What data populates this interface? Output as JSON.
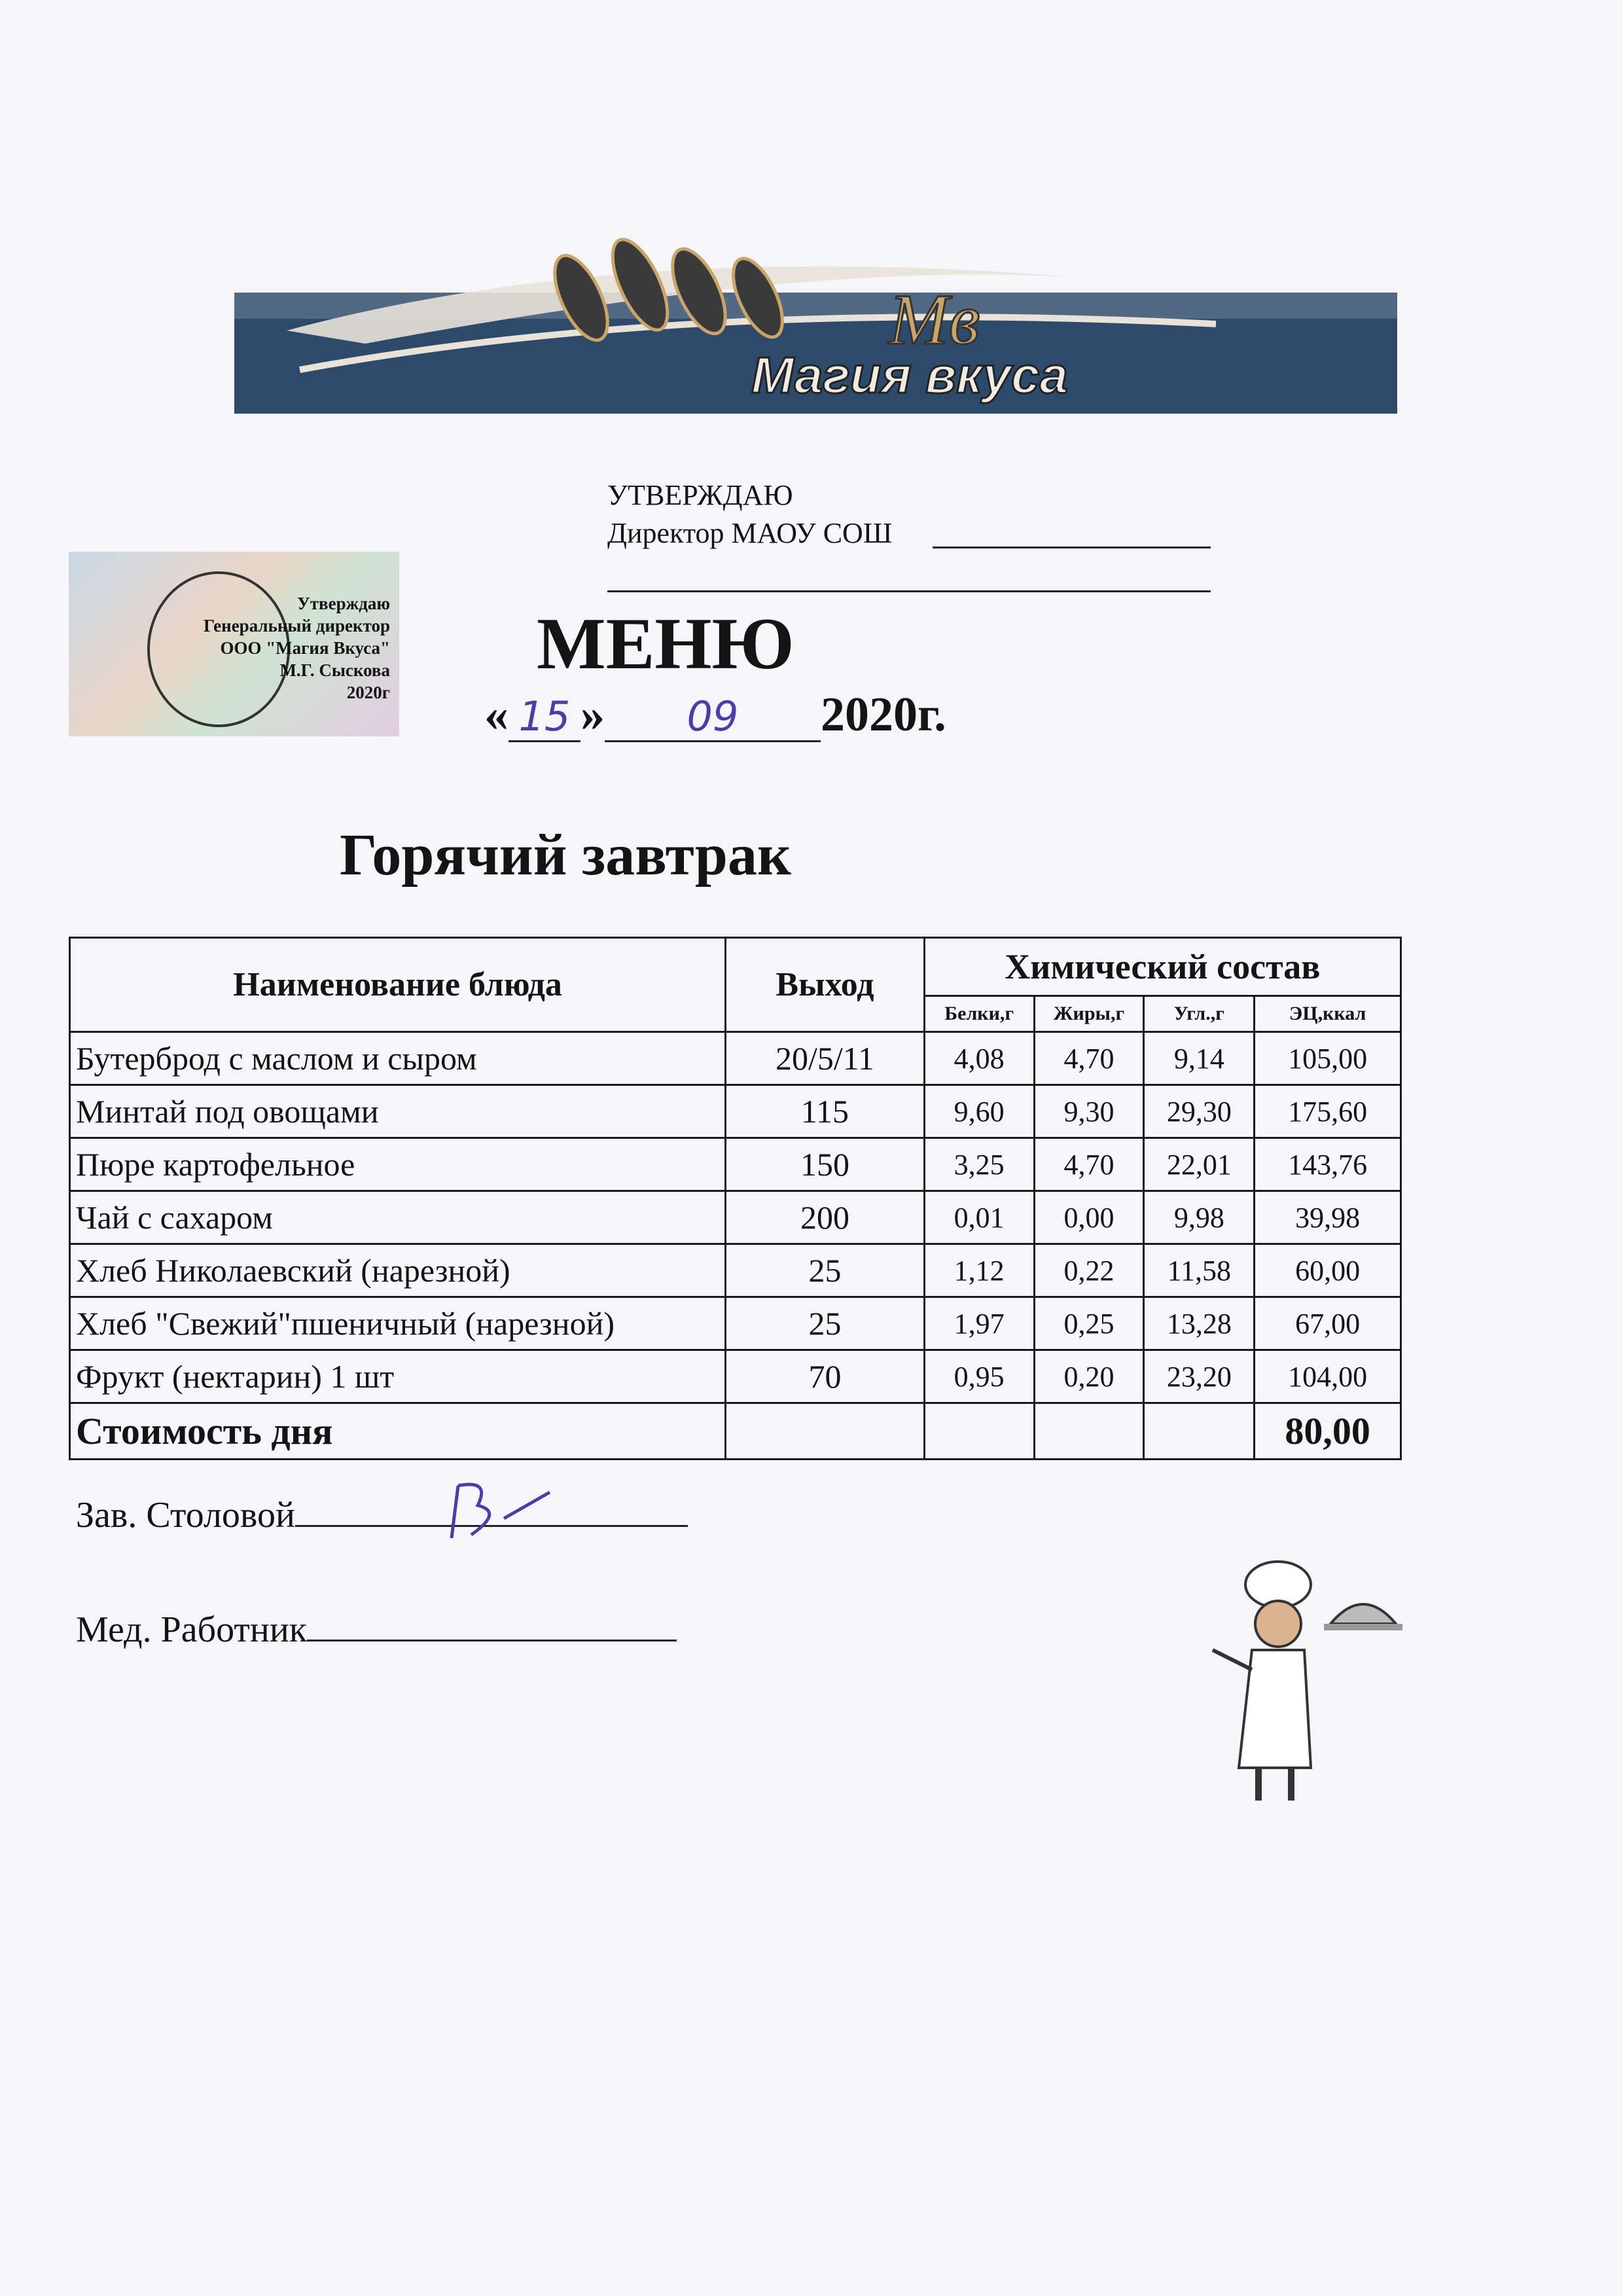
{
  "logo": {
    "brand_text": "Магия вкуса",
    "colors": {
      "band": "#2d4a6b",
      "gold": "#c9a46b"
    }
  },
  "approval": {
    "line1": "УТВЕРЖДАЮ",
    "line2": "Директор МАОУ СОШ"
  },
  "stamp": {
    "lines": [
      "Утверждаю",
      "Генеральный директор",
      "ООО \"Магия Вкуса\"",
      "М.Г. Сыскова",
      "2020г"
    ]
  },
  "title": "МЕНЮ",
  "date": {
    "open_quote": "«",
    "day": "15",
    "close_quote": "»",
    "month": "09",
    "year": "2020г."
  },
  "meal": "Горячий завтрак",
  "table": {
    "headers": {
      "name": "Наименование блюда",
      "output": "Выход",
      "chem": "Химический состав",
      "protein": "Белки,г",
      "fat": "Жиры,г",
      "carbs": "Угл.,г",
      "energy": "ЭЦ,ккал"
    },
    "rows": [
      {
        "name": "Бутерброд с маслом и сыром",
        "output": "20/5/11",
        "protein": "4,08",
        "fat": "4,70",
        "carbs": "9,14",
        "energy": "105,00"
      },
      {
        "name": "Минтай под овощами",
        "output": "115",
        "protein": "9,60",
        "fat": "9,30",
        "carbs": "29,30",
        "energy": "175,60"
      },
      {
        "name": "Пюре картофельное",
        "output": "150",
        "protein": "3,25",
        "fat": "4,70",
        "carbs": "22,01",
        "energy": "143,76"
      },
      {
        "name": "Чай  с  сахаром",
        "output": "200",
        "protein": "0,01",
        "fat": "0,00",
        "carbs": "9,98",
        "energy": "39,98"
      },
      {
        "name": "Хлеб Николаевский (нарезной)",
        "output": "25",
        "protein": "1,12",
        "fat": "0,22",
        "carbs": "11,58",
        "energy": "60,00"
      },
      {
        "name": "Хлеб \"Свежий\"пшеничный (нарезной)",
        "output": "25",
        "protein": "1,97",
        "fat": "0,25",
        "carbs": "13,28",
        "energy": "67,00"
      },
      {
        "name": "Фрукт (нектарин) 1 шт",
        "output": "70",
        "protein": "0,95",
        "fat": "0,20",
        "carbs": "23,20",
        "energy": "104,00"
      }
    ],
    "total": {
      "label": "Стоимость дня",
      "value": "80,00"
    }
  },
  "signatures": {
    "canteen": "Зав. Столовой",
    "medic": "Мед. Работник"
  }
}
